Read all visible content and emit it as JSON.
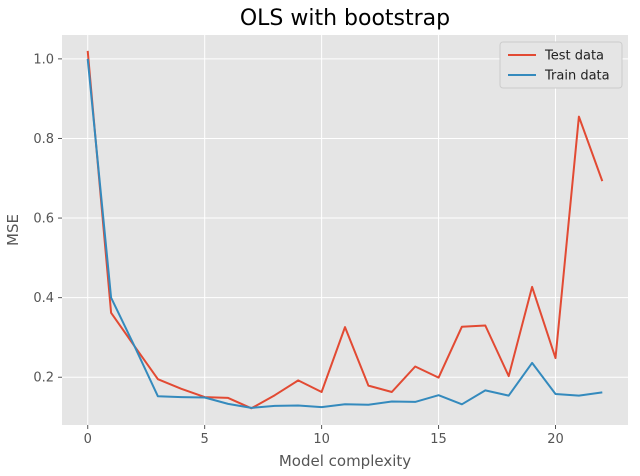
{
  "chart_data": {
    "type": "line",
    "title": "OLS with bootstrap",
    "xlabel": "Model complexity",
    "ylabel": "MSE",
    "xlim": [
      -1.1,
      23.1
    ],
    "ylim": [
      0.08,
      1.06
    ],
    "xticks": [
      0,
      5,
      10,
      15,
      20
    ],
    "yticks": [
      0.2,
      0.4,
      0.6,
      0.8,
      1.0
    ],
    "xtick_labels": [
      "0",
      "5",
      "10",
      "15",
      "20"
    ],
    "ytick_labels": [
      "0.2",
      "0.4",
      "0.6",
      "0.8",
      "1.0"
    ],
    "grid": true,
    "legend_position": "top-right",
    "x": [
      0,
      1,
      2,
      3,
      4,
      5,
      6,
      7,
      8,
      9,
      10,
      11,
      12,
      13,
      14,
      15,
      16,
      17,
      18,
      19,
      20,
      21,
      22
    ],
    "series": [
      {
        "name": "Test data",
        "color": "#e24a33",
        "values": [
          1.02,
          0.362,
          0.278,
          0.195,
          0.171,
          0.15,
          0.148,
          0.122,
          0.155,
          0.192,
          0.163,
          0.326,
          0.179,
          0.163,
          0.227,
          0.199,
          0.327,
          0.33,
          0.203,
          0.427,
          0.248,
          0.855,
          0.693
        ]
      },
      {
        "name": "Train data",
        "color": "#348abd",
        "values": [
          1.0,
          0.4,
          0.278,
          0.152,
          0.15,
          0.149,
          0.133,
          0.123,
          0.128,
          0.129,
          0.125,
          0.132,
          0.131,
          0.139,
          0.138,
          0.155,
          0.132,
          0.167,
          0.154,
          0.236,
          0.158,
          0.154,
          0.162
        ]
      }
    ]
  }
}
